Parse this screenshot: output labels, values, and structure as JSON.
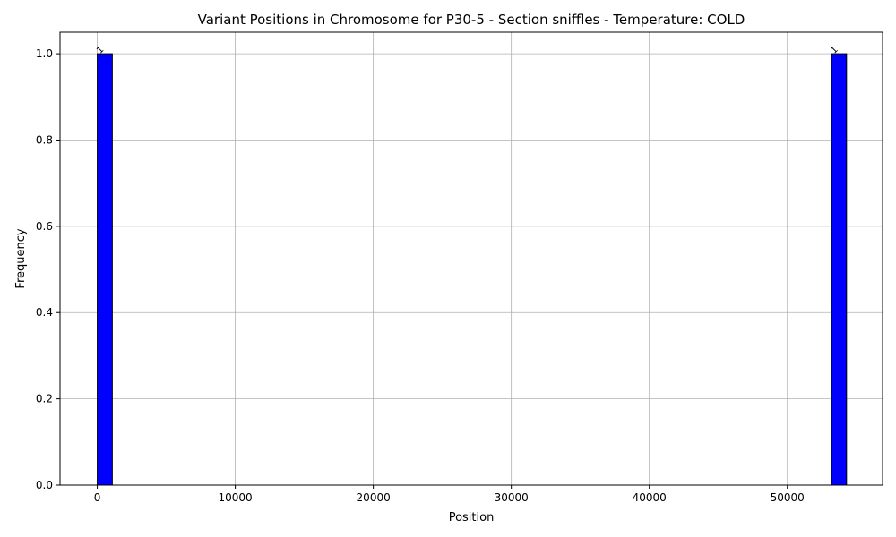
{
  "chart_data": {
    "type": "bar",
    "title": "Variant Positions in Chromosome for P30-5 - Section sniffles - Temperature: COLD",
    "xlabel": "Position",
    "ylabel": "Frequency",
    "xlim": [
      -2700,
      56900
    ],
    "ylim": [
      0,
      1.05
    ],
    "x_ticks": [
      0,
      10000,
      20000,
      30000,
      40000,
      50000
    ],
    "y_ticks": [
      0.0,
      0.2,
      0.4,
      0.6,
      0.8,
      1.0
    ],
    "x_tick_labels": [
      "0",
      "10000",
      "20000",
      "30000",
      "40000",
      "50000"
    ],
    "y_tick_labels": [
      "0.0",
      "0.2",
      "0.4",
      "0.6",
      "0.8",
      "1.0"
    ],
    "grid": true,
    "bar_color": "#0000ff",
    "bars": [
      {
        "start": 0,
        "end": 1090,
        "value": 1,
        "label": "1"
      },
      {
        "start": 53200,
        "end": 54290,
        "value": 1,
        "label": "1"
      }
    ],
    "baseline": {
      "start": 0,
      "end": 54290
    }
  }
}
